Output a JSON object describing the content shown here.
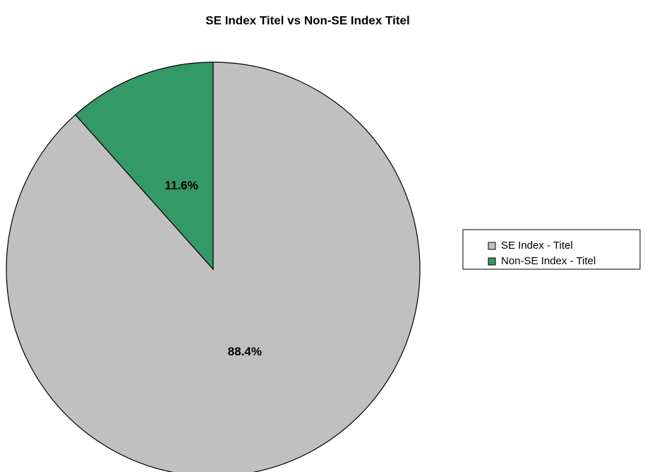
{
  "chart_data": {
    "type": "pie",
    "title": "SE Index Titel vs Non-SE Index Titel",
    "categories": [
      "SE Index - Titel",
      "Non-SE Index - Titel"
    ],
    "values": [
      88.4,
      11.6
    ],
    "value_labels": [
      "88.4%",
      "11.6%"
    ],
    "colors": [
      "#c0c0c0",
      "#339966"
    ],
    "legend": "right"
  }
}
